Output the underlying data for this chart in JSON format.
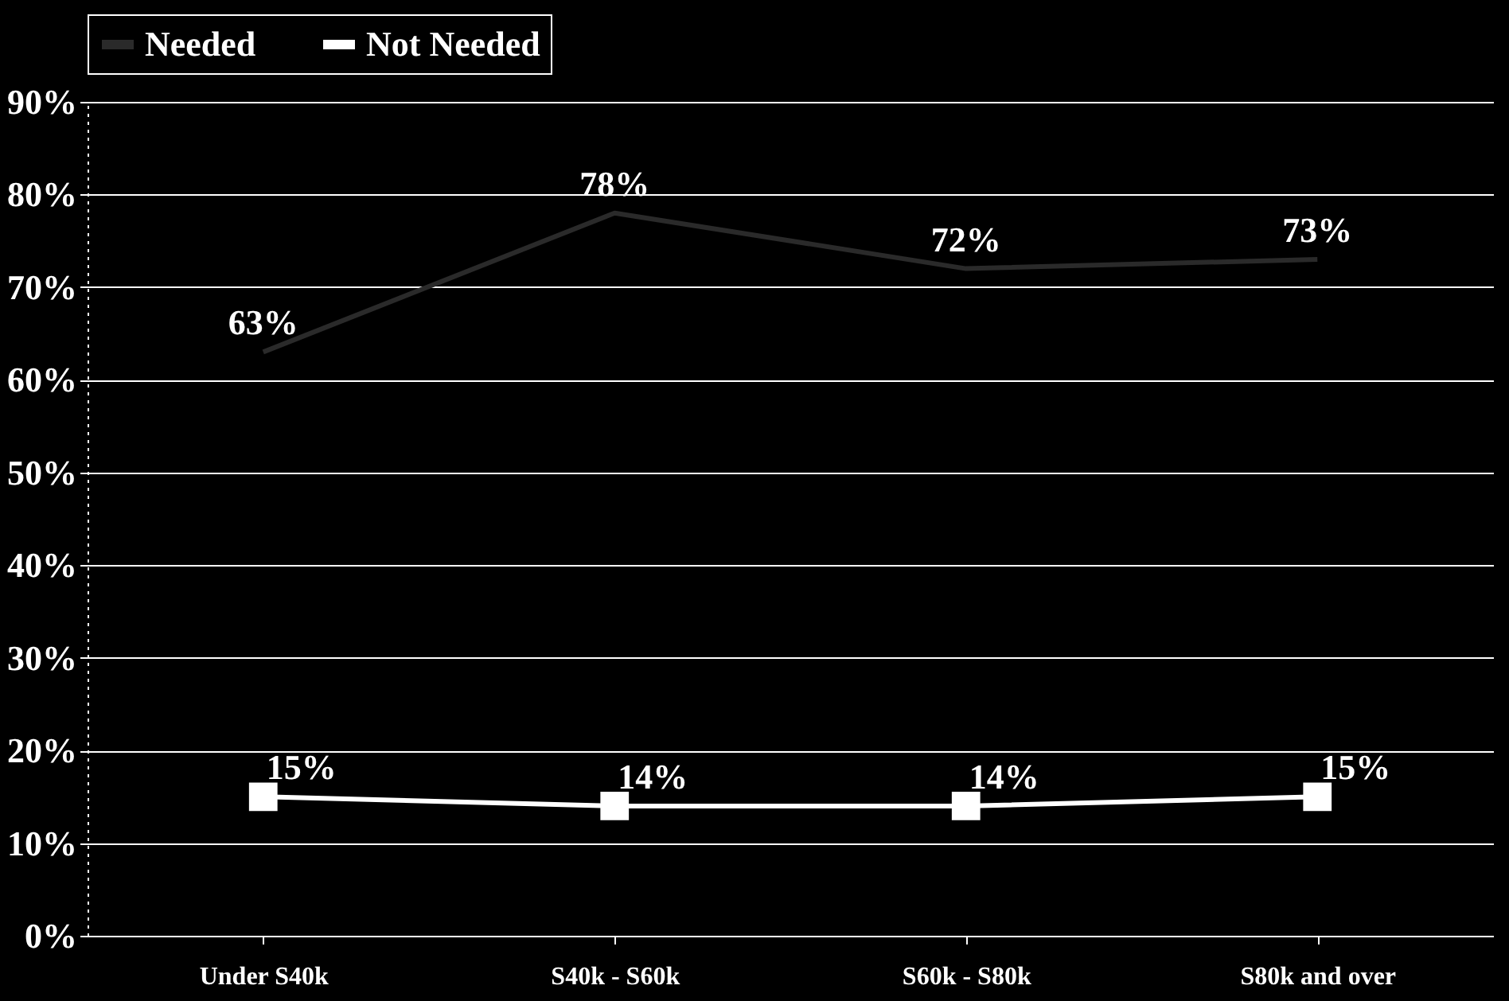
{
  "chart_data": {
    "type": "line",
    "categories": [
      "Under S40k",
      "S40k - S60k",
      "S60k - S80k",
      "S80k and over"
    ],
    "series": [
      {
        "name": "Needed",
        "color": "#2a2a2a",
        "values": [
          63,
          78,
          72,
          73
        ],
        "marker": "none",
        "value_labels": [
          "63%",
          "78%",
          "72%",
          "73%"
        ]
      },
      {
        "name": "Not Needed",
        "color": "#ffffff",
        "values": [
          15,
          14,
          14,
          15
        ],
        "marker": "square",
        "value_labels": [
          "15%",
          "14%",
          "14%",
          "15%"
        ]
      }
    ],
    "ylim": [
      0,
      90
    ],
    "yticks": [
      {
        "value": 0,
        "label": "0%"
      },
      {
        "value": 10,
        "label": "10%"
      },
      {
        "value": 20,
        "label": "20%"
      },
      {
        "value": 30,
        "label": "30%"
      },
      {
        "value": 40,
        "label": "40%"
      },
      {
        "value": 50,
        "label": "50%"
      },
      {
        "value": 60,
        "label": "60%"
      },
      {
        "value": 70,
        "label": "70%"
      },
      {
        "value": 80,
        "label": "80%"
      },
      {
        "value": 90,
        "label": "90%"
      }
    ],
    "grid": "y",
    "legend": "top",
    "line_style": "solid"
  }
}
